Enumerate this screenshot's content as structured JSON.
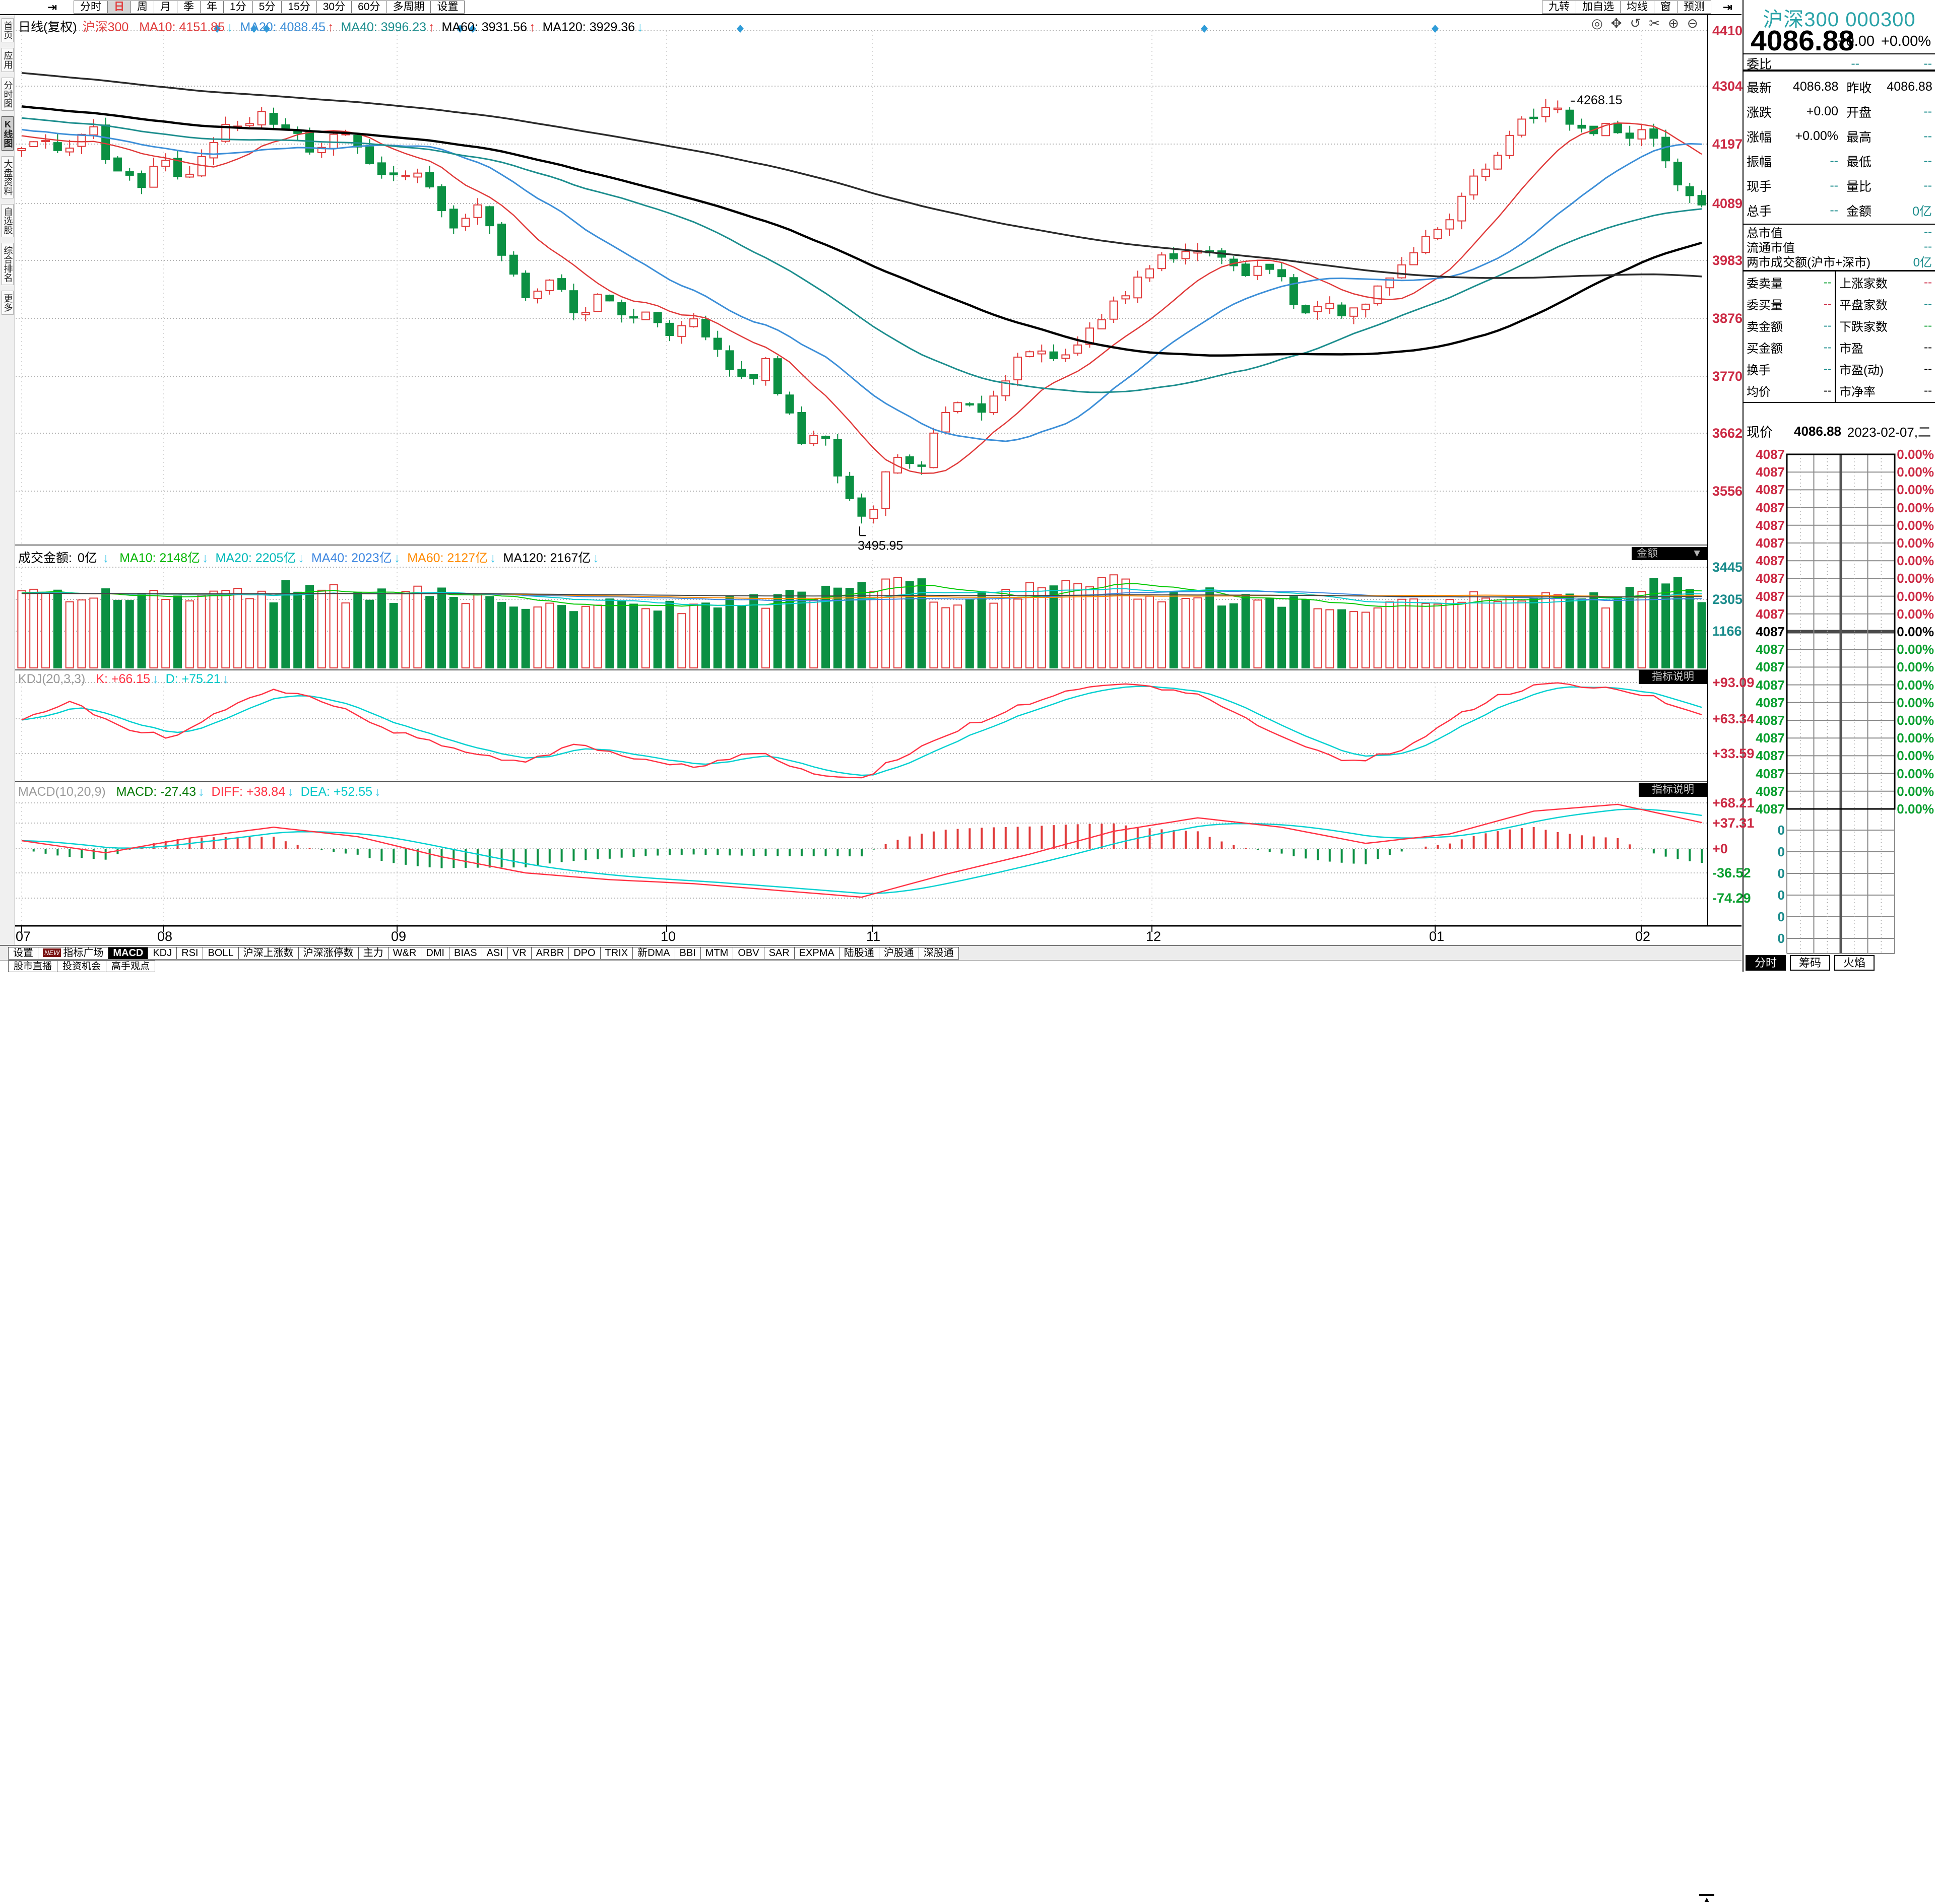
{
  "toolbar": {
    "nav_icon": "⇥",
    "items": [
      {
        "label": "分时",
        "selected": false
      },
      {
        "label": "日",
        "selected": true
      },
      {
        "label": "周",
        "selected": false
      },
      {
        "label": "月",
        "selected": false
      },
      {
        "label": "季",
        "selected": false
      },
      {
        "label": "年",
        "selected": false
      },
      {
        "label": "1分",
        "selected": false
      },
      {
        "label": "5分",
        "selected": false
      },
      {
        "label": "15分",
        "selected": false
      },
      {
        "label": "30分",
        "selected": false
      },
      {
        "label": "60分",
        "selected": false
      },
      {
        "label": "多周期",
        "selected": false
      },
      {
        "label": "设置",
        "selected": false
      }
    ],
    "right_items": [
      {
        "label": "九转"
      },
      {
        "label": "加自选"
      },
      {
        "label": "均线"
      },
      {
        "label": "窗"
      },
      {
        "label": "预测"
      }
    ],
    "right_nav_icon": "⇥"
  },
  "chart_tools": [
    {
      "name": "crosshair-icon",
      "glyph": "◎"
    },
    {
      "name": "pan-hand-icon",
      "glyph": "✥"
    },
    {
      "name": "undo-icon",
      "glyph": "↺"
    },
    {
      "name": "cut-icon",
      "glyph": "✂"
    },
    {
      "name": "zoom-in-icon",
      "glyph": "⊕"
    },
    {
      "name": "zoom-out-icon",
      "glyph": "⊖"
    }
  ],
  "sidebar": {
    "items": [
      {
        "label": "首页",
        "selected": false
      },
      {
        "label": "应用",
        "selected": false
      },
      {
        "label": "分时图",
        "selected": false
      },
      {
        "label": "K线图",
        "selected": true
      },
      {
        "label": "大盘资料",
        "selected": false
      },
      {
        "label": "自选股",
        "selected": false
      },
      {
        "label": "综合排名",
        "selected": false
      },
      {
        "label": "更多",
        "selected": false
      }
    ]
  },
  "kline_pane": {
    "period": "日线(复权)",
    "symbol": "沪深300",
    "ma_items": [
      {
        "label": "MA10:",
        "value": "4151.85",
        "color": "#e03a3a",
        "dir": "down"
      },
      {
        "label": "MA20:",
        "value": "4088.45",
        "color": "#3d8fd8",
        "dir": "up"
      },
      {
        "label": "MA40:",
        "value": "3996.23",
        "color": "#1d8e8e",
        "dir": "up"
      },
      {
        "label": "MA60:",
        "value": "3931.56",
        "color": "#000000",
        "dir": "up"
      },
      {
        "label": "MA120:",
        "value": "3929.36",
        "color": "#000000",
        "dir": "down"
      }
    ]
  },
  "volume_pane": {
    "title": "成交金额:",
    "value": "0亿",
    "dir": "down",
    "dropdown_label": "金额",
    "dropdown_arrow": "▼",
    "ma_items": [
      {
        "label": "MA10:",
        "value": "2148亿",
        "color": "#00b400",
        "dir": "down"
      },
      {
        "label": "MA20:",
        "value": "2205亿",
        "color": "#00b8b8",
        "dir": "down"
      },
      {
        "label": "MA40:",
        "value": "2023亿",
        "color": "#3d86e0",
        "dir": "down"
      },
      {
        "label": "MA60:",
        "value": "2127亿",
        "color": "#ff8a00",
        "dir": "down"
      },
      {
        "label": "MA120:",
        "value": "2167亿",
        "color": "#000000",
        "dir": "down"
      }
    ]
  },
  "kdj_pane": {
    "title": "KDJ(20,3,3)",
    "corner_label": "指标说明",
    "items": [
      {
        "label": "K:",
        "value": "+66.15",
        "color": "#ff3344",
        "dir": "down"
      },
      {
        "label": "D:",
        "value": "+75.21",
        "color": "#00c8c8",
        "dir": "down"
      }
    ]
  },
  "macd_pane": {
    "title": "MACD(10,20,9)",
    "corner_label": "指标说明",
    "items": [
      {
        "label": "MACD:",
        "value": "-27.43",
        "color": "#007800",
        "dir": "down"
      },
      {
        "label": "DIFF:",
        "value": "+38.84",
        "color": "#ff3344",
        "dir": "down"
      },
      {
        "label": "DEA:",
        "value": "+52.55",
        "color": "#00c8c8",
        "dir": "down"
      }
    ]
  },
  "quote_panel": {
    "name": "沪深300",
    "code": "000300",
    "price": "4086.88",
    "change": "+0.00",
    "change_pct": "+0.00%",
    "weibi": {
      "label": "委比",
      "v1": "--",
      "v2": "--"
    },
    "rows": [
      {
        "l": "最新",
        "lv": "4086.88",
        "lc": "#000000",
        "r": "昨收",
        "rv": "4086.88",
        "rc": "#000000"
      },
      {
        "l": "涨跌",
        "lv": "+0.00",
        "lc": "#000000",
        "r": "开盘",
        "rv": "--",
        "rc": "#1b8c8c"
      },
      {
        "l": "涨幅",
        "lv": "+0.00%",
        "lc": "#000000",
        "r": "最高",
        "rv": "--",
        "rc": "#1b8c8c"
      },
      {
        "l": "振幅",
        "lv": "--",
        "lc": "#1b8c8c",
        "r": "最低",
        "rv": "--",
        "rc": "#1b8c8c"
      },
      {
        "l": "现手",
        "lv": "--",
        "lc": "#1b8c8c",
        "r": "量比",
        "rv": "--",
        "rc": "#1b8c8c"
      },
      {
        "l": "总手",
        "lv": "--",
        "lc": "#1b8c8c",
        "r": "金额",
        "rv": "0亿",
        "rc": "#1b8c8c"
      }
    ],
    "wide_rows": [
      {
        "l": "总市值",
        "v": "--",
        "c": "#1b8c8c"
      },
      {
        "l": "流通市值",
        "v": "--",
        "c": "#1b8c8c"
      },
      {
        "l": "两市成交额(沪市+深市)",
        "v": "0亿",
        "c": "#1b8c8c"
      }
    ],
    "pair_left": [
      {
        "l": "委卖量",
        "v": "--",
        "c": "#0a9f2f"
      },
      {
        "l": "委买量",
        "v": "--",
        "c": "#cc2a44"
      },
      {
        "l": "卖金额",
        "v": "--",
        "c": "#1b8c8c"
      },
      {
        "l": "买金额",
        "v": "--",
        "c": "#1b8c8c"
      },
      {
        "l": "换手",
        "v": "--",
        "c": "#1b8c8c"
      },
      {
        "l": "均价",
        "v": "--",
        "c": "#000000"
      }
    ],
    "pair_right": [
      {
        "l": "上涨家数",
        "v": "--",
        "c": "#cc2a44"
      },
      {
        "l": "平盘家数",
        "v": "--",
        "c": "#1b8c8c"
      },
      {
        "l": "下跌家数",
        "v": "--",
        "c": "#0a9f2f"
      },
      {
        "l": "市盈",
        "v": "--",
        "c": "#000000"
      },
      {
        "l": "市盈(动)",
        "v": "--",
        "c": "#000000"
      },
      {
        "l": "市净率",
        "v": "--",
        "c": "#000000"
      }
    ],
    "current": {
      "label": "现价",
      "value": "4086.88",
      "date": "2023-02-07,二"
    },
    "ladder": {
      "price": "4087",
      "pct": "0.00%",
      "zero": "0",
      "above_count": 10,
      "below_count": 10,
      "zero_count": 6,
      "up_color": "#cc2a44",
      "mid_color": "#000000",
      "down_color": "#0a9f2f",
      "zero_color": "#1b8c8c"
    },
    "tabs": [
      {
        "label": "分时",
        "selected": true
      },
      {
        "label": "筹码",
        "selected": false
      },
      {
        "label": "火焰",
        "selected": false
      }
    ]
  },
  "indicator_bar": {
    "settings": "设置",
    "plaza_badge": "NEW",
    "plaza_label": "指标广场",
    "collapse_icon": "▲",
    "tabs": [
      {
        "label": "MACD",
        "selected": true
      },
      {
        "label": "KDJ"
      },
      {
        "label": "RSI"
      },
      {
        "label": "BOLL"
      },
      {
        "label": "沪深上涨数"
      },
      {
        "label": "沪深涨停数"
      },
      {
        "label": "主力"
      },
      {
        "label": "W&R"
      },
      {
        "label": "DMI"
      },
      {
        "label": "BIAS"
      },
      {
        "label": "ASI"
      },
      {
        "label": "VR"
      },
      {
        "label": "ARBR"
      },
      {
        "label": "DPO"
      },
      {
        "label": "TRIX"
      },
      {
        "label": "新DMA"
      },
      {
        "label": "BBI"
      },
      {
        "label": "MTM"
      },
      {
        "label": "OBV"
      },
      {
        "label": "SAR"
      },
      {
        "label": "EXPMA"
      },
      {
        "label": "陆股通"
      },
      {
        "label": "沪股通"
      },
      {
        "label": "深股通"
      }
    ]
  },
  "live_bar": {
    "items": [
      {
        "label": "股市直播"
      },
      {
        "label": "投资机会"
      },
      {
        "label": "高手观点"
      }
    ]
  },
  "chart_data": {
    "type": "candlestick",
    "panes": [
      "kline",
      "volume",
      "kdj",
      "macd"
    ],
    "n_candles": 141,
    "price_axis_labels": [
      "4410",
      "4304",
      "4197",
      "4089",
      "3983",
      "3876",
      "3770",
      "3662",
      "3556"
    ],
    "price_axis_y": [
      61,
      171,
      286,
      404,
      517,
      632,
      747,
      860,
      975
    ],
    "volume_axis_labels": [
      "3445",
      "2305",
      "1166"
    ],
    "volume_axis_y": [
      1126,
      1190,
      1253
    ],
    "kdj_axis_labels": [
      "+93.09",
      "+63.34",
      "+33.59"
    ],
    "kdj_axis_y": [
      1355,
      1427,
      1496
    ],
    "macd_axis_labels": [
      "+68.21",
      "+37.31",
      "+0",
      "-36.52",
      "-74.29"
    ],
    "macd_axis_y": [
      1594,
      1634,
      1685,
      1733,
      1783
    ],
    "macd_axis_colors": [
      "#cc2a44",
      "#cc2a44",
      "#cc2a44",
      "#0a9f2f",
      "#0a9f2f"
    ],
    "x_axis": {
      "labels": [
        "07",
        "08",
        "09",
        "10",
        "11",
        "12",
        "01",
        "02"
      ],
      "x": [
        31,
        312,
        776,
        1311,
        1719,
        2274,
        2836,
        3245
      ]
    },
    "close_anchors": [
      [
        0,
        4195
      ],
      [
        0.012,
        4215
      ],
      [
        0.025,
        4175
      ],
      [
        0.04,
        4235
      ],
      [
        0.055,
        4150
      ],
      [
        0.07,
        4120
      ],
      [
        0.085,
        4165
      ],
      [
        0.1,
        4135
      ],
      [
        0.115,
        4210
      ],
      [
        0.13,
        4245
      ],
      [
        0.145,
        4258
      ],
      [
        0.16,
        4225
      ],
      [
        0.172,
        4185
      ],
      [
        0.185,
        4225
      ],
      [
        0.2,
        4195
      ],
      [
        0.215,
        4130
      ],
      [
        0.23,
        4155
      ],
      [
        0.245,
        4100
      ],
      [
        0.26,
        4045
      ],
      [
        0.272,
        4085
      ],
      [
        0.285,
        3990
      ],
      [
        0.3,
        3925
      ],
      [
        0.315,
        3955
      ],
      [
        0.33,
        3885
      ],
      [
        0.345,
        3915
      ],
      [
        0.36,
        3870
      ],
      [
        0.372,
        3895
      ],
      [
        0.385,
        3855
      ],
      [
        0.4,
        3875
      ],
      [
        0.415,
        3805
      ],
      [
        0.43,
        3755
      ],
      [
        0.442,
        3795
      ],
      [
        0.455,
        3705
      ],
      [
        0.465,
        3645
      ],
      [
        0.475,
        3685
      ],
      [
        0.485,
        3595
      ],
      [
        0.495,
        3530
      ],
      [
        0.503,
        3505
      ],
      [
        0.512,
        3565
      ],
      [
        0.522,
        3625
      ],
      [
        0.535,
        3605
      ],
      [
        0.548,
        3685
      ],
      [
        0.56,
        3735
      ],
      [
        0.572,
        3705
      ],
      [
        0.585,
        3765
      ],
      [
        0.6,
        3825
      ],
      [
        0.613,
        3795
      ],
      [
        0.627,
        3835
      ],
      [
        0.64,
        3875
      ],
      [
        0.655,
        3920
      ],
      [
        0.67,
        3965
      ],
      [
        0.685,
        3995
      ],
      [
        0.698,
        4005
      ],
      [
        0.712,
        3985
      ],
      [
        0.726,
        3955
      ],
      [
        0.74,
        3992
      ],
      [
        0.753,
        3930
      ],
      [
        0.765,
        3885
      ],
      [
        0.778,
        3908
      ],
      [
        0.79,
        3882
      ],
      [
        0.803,
        3922
      ],
      [
        0.816,
        3962
      ],
      [
        0.83,
        4002
      ],
      [
        0.843,
        4042
      ],
      [
        0.856,
        4092
      ],
      [
        0.87,
        4152
      ],
      [
        0.885,
        4215
      ],
      [
        0.9,
        4252
      ],
      [
        0.915,
        4262
      ],
      [
        0.925,
        4238
      ],
      [
        0.935,
        4205
      ],
      [
        0.945,
        4242
      ],
      [
        0.955,
        4218
      ],
      [
        0.965,
        4232
      ],
      [
        0.975,
        4195
      ],
      [
        0.985,
        4130
      ],
      [
        1,
        4087
      ]
    ],
    "volume_anchors": [
      [
        0,
        2500
      ],
      [
        0.06,
        2300
      ],
      [
        0.12,
        2450
      ],
      [
        0.17,
        2650
      ],
      [
        0.22,
        2500
      ],
      [
        0.27,
        2280
      ],
      [
        0.32,
        2150
      ],
      [
        0.38,
        2050
      ],
      [
        0.44,
        2250
      ],
      [
        0.49,
        2650
      ],
      [
        0.515,
        3250
      ],
      [
        0.55,
        2380
      ],
      [
        0.6,
        2650
      ],
      [
        0.63,
        3150
      ],
      [
        0.66,
        2580
      ],
      [
        0.71,
        2320
      ],
      [
        0.76,
        2150
      ],
      [
        0.8,
        1900
      ],
      [
        0.85,
        2150
      ],
      [
        0.9,
        2450
      ],
      [
        0.95,
        2250
      ],
      [
        0.975,
        3380
      ],
      [
        1,
        2300
      ]
    ],
    "kdj_anchors": [
      [
        0,
        62
      ],
      [
        0.03,
        76
      ],
      [
        0.06,
        56
      ],
      [
        0.09,
        46
      ],
      [
        0.12,
        70
      ],
      [
        0.15,
        86
      ],
      [
        0.18,
        78
      ],
      [
        0.21,
        58
      ],
      [
        0.24,
        44
      ],
      [
        0.27,
        34
      ],
      [
        0.3,
        26
      ],
      [
        0.33,
        42
      ],
      [
        0.36,
        30
      ],
      [
        0.4,
        22
      ],
      [
        0.44,
        36
      ],
      [
        0.47,
        16
      ],
      [
        0.5,
        13
      ],
      [
        0.53,
        36
      ],
      [
        0.56,
        56
      ],
      [
        0.6,
        76
      ],
      [
        0.63,
        88
      ],
      [
        0.66,
        93
      ],
      [
        0.7,
        84
      ],
      [
        0.73,
        62
      ],
      [
        0.76,
        40
      ],
      [
        0.79,
        26
      ],
      [
        0.82,
        36
      ],
      [
        0.85,
        62
      ],
      [
        0.88,
        82
      ],
      [
        0.91,
        93
      ],
      [
        0.94,
        89
      ],
      [
        0.97,
        82
      ],
      [
        1,
        66
      ]
    ],
    "macd_diff_anchors": [
      [
        0,
        12
      ],
      [
        0.05,
        -6
      ],
      [
        0.1,
        16
      ],
      [
        0.15,
        32
      ],
      [
        0.2,
        18
      ],
      [
        0.25,
        -12
      ],
      [
        0.3,
        -36
      ],
      [
        0.35,
        -46
      ],
      [
        0.4,
        -52
      ],
      [
        0.45,
        -62
      ],
      [
        0.5,
        -72
      ],
      [
        0.55,
        -38
      ],
      [
        0.6,
        -8
      ],
      [
        0.65,
        26
      ],
      [
        0.7,
        46
      ],
      [
        0.75,
        32
      ],
      [
        0.8,
        8
      ],
      [
        0.85,
        22
      ],
      [
        0.9,
        56
      ],
      [
        0.95,
        66
      ],
      [
        1,
        39
      ]
    ],
    "event_markers_x": [
      431,
      504,
      529,
      913,
      938,
      1469,
      2390,
      2848
    ],
    "annotations": {
      "high": "4268.15",
      "low": "3495.95"
    },
    "extremes": {
      "high": 4268.15,
      "low": 3495.95,
      "index_high": 129,
      "index_low": 70
    },
    "colors": {
      "up": "#e03a3a",
      "down": "#0b9043",
      "marker": "#2f9cd8",
      "kline_ma": [
        "#e03a3a",
        "#3d8fd8",
        "#1d8e8e",
        "#000000",
        "#2a2a2a"
      ],
      "volume_ma": [
        "#00c800",
        "#00cccc",
        "#3d86e0",
        "#ff8a00",
        "#444444"
      ],
      "kdj": {
        "k": "#ff3344",
        "d": "#00d0d0"
      },
      "macd": {
        "diff": "#ff3344",
        "dea": "#00d0d0",
        "hist_pos": "#e03a3a",
        "hist_neg": "#0b9043"
      }
    }
  }
}
